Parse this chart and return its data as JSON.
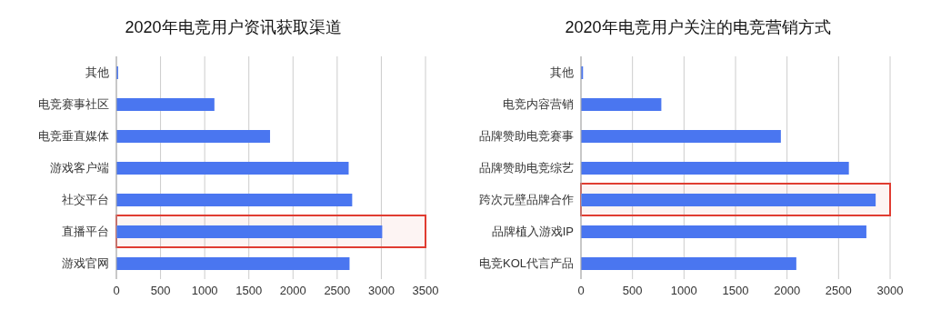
{
  "chart_data": [
    {
      "type": "bar",
      "orientation": "horizontal",
      "title": "2020年电竞用户资讯获取渠道",
      "categories": [
        "其他",
        "电竞赛事社区",
        "电竞垂直媒体",
        "游戏客户端",
        "社交平台",
        "直播平台",
        "游戏官网"
      ],
      "values": [
        20,
        1110,
        1740,
        2630,
        2670,
        3010,
        2640
      ],
      "color": "#4a76f0",
      "xlim": [
        0,
        3500
      ],
      "xticks": [
        0,
        500,
        1000,
        1500,
        2000,
        2500,
        3000,
        3500
      ],
      "grid": "x",
      "bands": [
        {
          "axis": "y",
          "from": "直播平台",
          "to": "直播平台",
          "color": "#e03c31"
        }
      ]
    },
    {
      "type": "bar",
      "orientation": "horizontal",
      "title": "2020年电竞用户关注的电竞营销方式",
      "categories": [
        "其他",
        "电竞内容营销",
        "品牌赞助电竞赛事",
        "品牌赞助电竞综艺",
        "跨次元壁品牌合作",
        "品牌植入游戏IP",
        "电竞KOL代言产品"
      ],
      "values": [
        20,
        780,
        1940,
        2600,
        2860,
        2770,
        2090
      ],
      "color": "#4a76f0",
      "xlim": [
        0,
        3000
      ],
      "xticks": [
        0,
        500,
        1000,
        1500,
        2000,
        2500,
        3000
      ],
      "grid": "x",
      "bands": [
        {
          "axis": "y",
          "from": "跨次元壁品牌合作",
          "to": "跨次元壁品牌合作",
          "color": "#e03c31"
        }
      ]
    }
  ]
}
